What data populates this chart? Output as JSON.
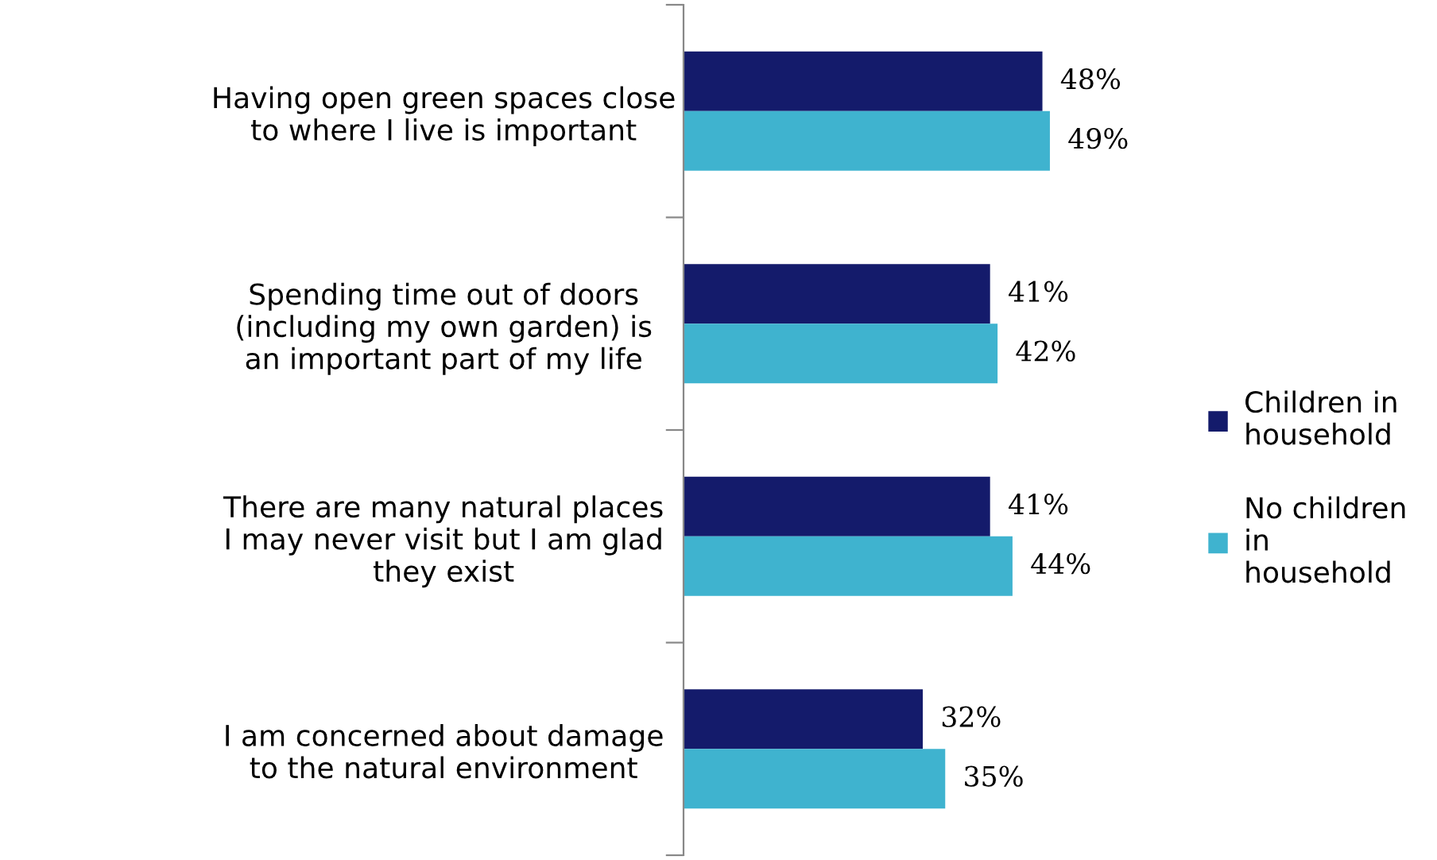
{
  "chart_data": {
    "type": "bar",
    "orientation": "horizontal",
    "categories": [
      "Having open green spaces close\nto where I live is important",
      "Spending time out of doors\n(including my own garden) is\nan important part of my life",
      "There are many natural places\nI may never visit but I am glad\nthey exist",
      "I am concerned about damage\nto the natural environment"
    ],
    "series": [
      {
        "name": "Children in\nhousehold",
        "color": "#141b6b",
        "values": [
          48,
          41,
          41,
          32
        ],
        "value_labels": [
          "48%",
          "41%",
          "41%",
          "32%"
        ]
      },
      {
        "name": "No children\nin\nhousehold",
        "color": "#3fb3cf",
        "values": [
          49,
          42,
          44,
          35
        ],
        "value_labels": [
          "49%",
          "42%",
          "44%",
          "35%"
        ]
      }
    ],
    "legend": "right",
    "grid": false
  }
}
